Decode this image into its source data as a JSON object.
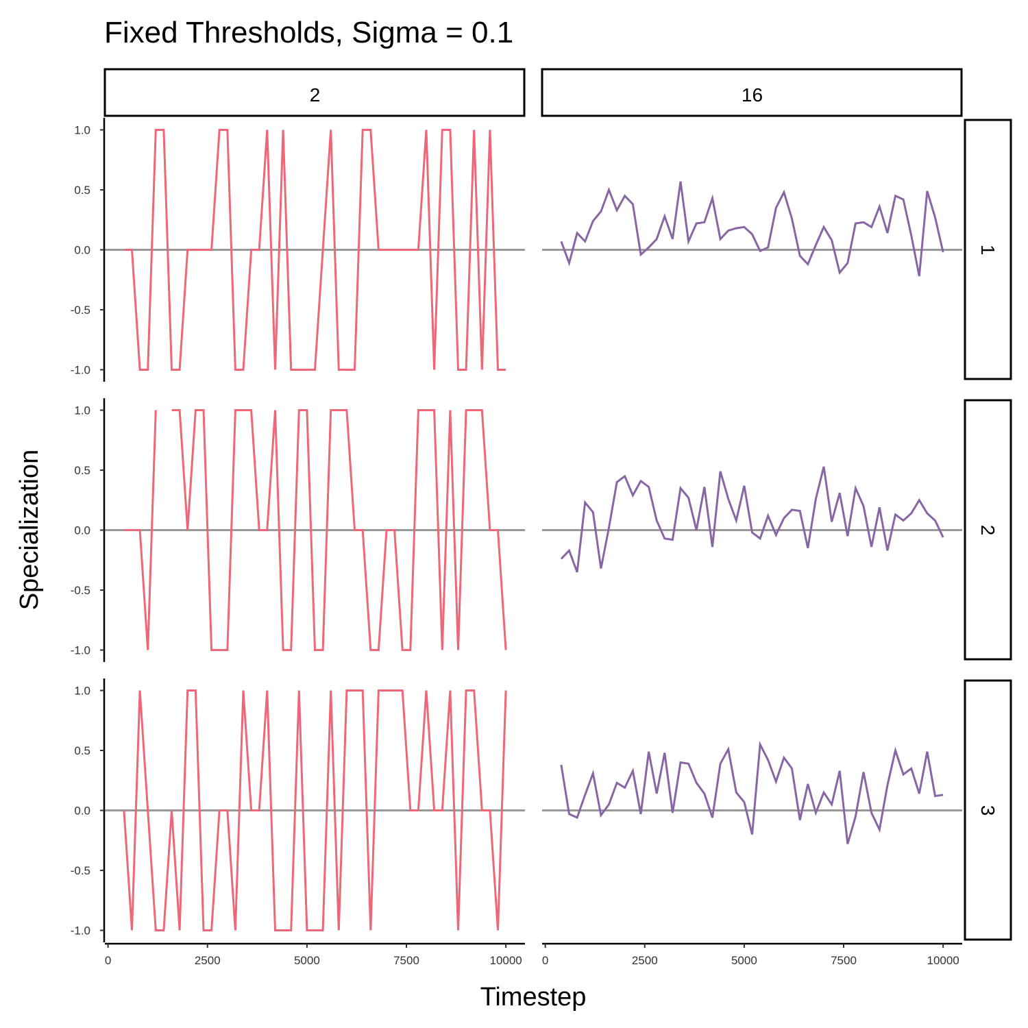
{
  "chart_data": {
    "type": "line",
    "title": "Fixed Thresholds, Sigma = 0.1",
    "xlabel": "Timestep",
    "ylabel": "Specialization",
    "xlim": [
      -80,
      10480
    ],
    "ylim": [
      -1.1,
      1.1
    ],
    "xticks": [
      0,
      2500,
      5000,
      7500,
      10000
    ],
    "yticks": [
      {
        "value": -1,
        "label": "-1.0"
      },
      {
        "value": -0.5,
        "label": "-0.5"
      },
      {
        "value": 0,
        "label": "0.0"
      },
      {
        "value": 0.5,
        "label": "0.5"
      },
      {
        "value": 1,
        "label": "1.0"
      }
    ],
    "hline": 0,
    "row_labels": [
      "1",
      "2",
      "3"
    ],
    "x": [
      400,
      600,
      800,
      1000,
      1200,
      1400,
      1600,
      1800,
      2000,
      2200,
      2400,
      2600,
      2800,
      3000,
      3200,
      3400,
      3600,
      3800,
      4000,
      4200,
      4400,
      4600,
      4800,
      5000,
      5200,
      5400,
      5600,
      5800,
      6000,
      6200,
      6400,
      6600,
      6800,
      7000,
      7200,
      7400,
      7600,
      7800,
      8000,
      8200,
      8400,
      8600,
      8800,
      9000,
      9200,
      9400,
      9600,
      9800,
      10000
    ],
    "columns": [
      {
        "label": "2",
        "color": "#ee6677",
        "rows": [
          [
            0,
            0,
            -1,
            -1,
            1,
            1,
            -1,
            -1,
            0,
            0,
            0,
            0,
            1,
            1,
            -1,
            -1,
            0,
            0,
            1,
            -1,
            1,
            -1,
            -1,
            -1,
            -1,
            0,
            1,
            -1,
            -1,
            -1,
            1,
            1,
            0,
            0,
            0,
            0,
            0,
            0,
            1,
            -1,
            1,
            1,
            -1,
            -1,
            1,
            -1,
            1,
            -1,
            -1
          ],
          [
            0,
            0,
            0,
            -1,
            1,
            null,
            1,
            1,
            0,
            1,
            1,
            -1,
            -1,
            -1,
            1,
            1,
            1,
            0,
            0,
            1,
            -1,
            -1,
            1,
            1,
            -1,
            -1,
            1,
            1,
            1,
            0,
            0,
            -1,
            -1,
            0,
            0,
            -1,
            -1,
            1,
            1,
            1,
            -1,
            1,
            -1,
            1,
            1,
            1,
            0,
            0,
            -1
          ],
          [
            0,
            -1,
            1,
            0,
            -1,
            -1,
            0,
            -1,
            1,
            1,
            -1,
            -1,
            0,
            0,
            -1,
            1,
            0,
            0,
            1,
            -1,
            -1,
            -1,
            1,
            -1,
            -1,
            -1,
            1,
            -1,
            1,
            1,
            1,
            -1,
            1,
            1,
            1,
            1,
            0,
            0,
            1,
            0,
            0,
            1,
            -1,
            1,
            1,
            0,
            0,
            -1,
            1
          ]
        ]
      },
      {
        "label": "16",
        "color": "#8865a3",
        "rows": [
          [
            0.07,
            -0.11,
            0.14,
            0.07,
            0.24,
            0.32,
            0.5,
            0.33,
            0.45,
            0.38,
            -0.04,
            0.02,
            0.09,
            0.28,
            0.09,
            0.57,
            0.07,
            0.22,
            0.23,
            0.43,
            0.09,
            0.16,
            0.18,
            0.19,
            0.13,
            -0.01,
            0.02,
            0.35,
            0.48,
            0.26,
            -0.05,
            -0.12,
            0.04,
            0.19,
            0.08,
            -0.19,
            -0.11,
            0.22,
            0.23,
            0.19,
            0.36,
            0.14,
            0.45,
            0.42,
            0.12,
            -0.22,
            0.49,
            0.27,
            -0.02
          ],
          [
            -0.24,
            -0.17,
            -0.35,
            0.23,
            0.15,
            -0.32,
            0.02,
            0.4,
            0.45,
            0.29,
            0.41,
            0.36,
            0.08,
            -0.07,
            -0.08,
            0.35,
            0.27,
            0,
            0.36,
            -0.14,
            0.49,
            0.26,
            0.08,
            0.37,
            -0.02,
            -0.07,
            0.12,
            -0.04,
            0.1,
            0.17,
            0.16,
            -0.15,
            0.26,
            0.53,
            0.07,
            0.31,
            -0.05,
            0.35,
            0.2,
            -0.14,
            0.19,
            -0.17,
            0.13,
            0.08,
            0.14,
            0.25,
            0.14,
            0.08,
            -0.06
          ],
          [
            0.38,
            -0.03,
            -0.06,
            0.13,
            0.31,
            -0.04,
            0.05,
            0.23,
            0.19,
            0.33,
            -0.03,
            0.49,
            0.14,
            0.48,
            -0.02,
            0.4,
            0.39,
            0.23,
            0.14,
            -0.06,
            0.39,
            0.51,
            0.15,
            0.07,
            -0.2,
            0.55,
            0.42,
            0.24,
            0.44,
            0.35,
            -0.08,
            0.22,
            -0.02,
            0.15,
            0.05,
            0.33,
            -0.28,
            -0.05,
            0.32,
            -0.02,
            -0.16,
            0.21,
            0.5,
            0.3,
            0.35,
            0.14,
            0.49,
            0.12,
            0.13
          ]
        ]
      }
    ]
  }
}
